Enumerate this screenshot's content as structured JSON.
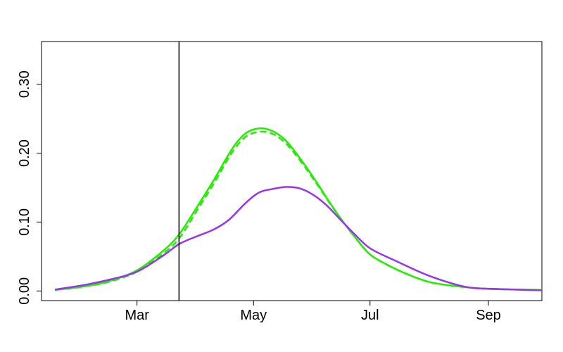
{
  "chart_data": {
    "type": "line",
    "title": "",
    "xlabel": "",
    "ylabel": "",
    "x_ticks": [
      "Mar",
      "May",
      "Jul",
      "Sep"
    ],
    "x_tick_dates": [
      "2020-03-01",
      "2020-05-01",
      "2020-07-01",
      "2020-09-01"
    ],
    "xlim": [
      "2020-01-11",
      "2020-09-29"
    ],
    "y_ticks": [
      "0.00",
      "0.10",
      "0.20",
      "0.30"
    ],
    "y_tick_values": [
      0,
      0.1,
      0.2,
      0.3
    ],
    "ylim": [
      -0.014,
      0.362
    ],
    "grid": false,
    "legend": "none",
    "vertical_line": {
      "x": "2020-03-23",
      "color": "#000000"
    },
    "series": [
      {
        "color": "#22ee00",
        "style": "solid",
        "points": [
          [
            "2020-01-18",
            0.0015
          ],
          [
            "2020-02-01",
            0.006
          ],
          [
            "2020-02-15",
            0.014
          ],
          [
            "2020-03-01",
            0.03
          ],
          [
            "2020-03-15",
            0.059
          ],
          [
            "2020-03-23",
            0.082
          ],
          [
            "2020-04-01",
            0.12
          ],
          [
            "2020-04-10",
            0.16
          ],
          [
            "2020-04-20",
            0.207
          ],
          [
            "2020-04-27",
            0.229
          ],
          [
            "2020-05-04",
            0.236
          ],
          [
            "2020-05-11",
            0.232
          ],
          [
            "2020-05-18",
            0.218
          ],
          [
            "2020-05-26",
            0.19
          ],
          [
            "2020-06-03",
            0.158
          ],
          [
            "2020-06-10",
            0.128
          ],
          [
            "2020-06-17",
            0.1
          ],
          [
            "2020-06-24",
            0.075
          ],
          [
            "2020-07-01",
            0.053
          ],
          [
            "2020-07-10",
            0.038
          ],
          [
            "2020-07-20",
            0.025
          ],
          [
            "2020-08-01",
            0.013
          ],
          [
            "2020-08-15",
            0.007
          ],
          [
            "2020-09-01",
            0.003
          ],
          [
            "2020-09-29",
            0.0015
          ]
        ]
      },
      {
        "color": "#22ee00",
        "style": "dashed",
        "points": [
          [
            "2020-01-18",
            0.0015
          ],
          [
            "2020-02-01",
            0.006
          ],
          [
            "2020-02-15",
            0.013
          ],
          [
            "2020-03-01",
            0.028
          ],
          [
            "2020-03-15",
            0.055
          ],
          [
            "2020-03-23",
            0.076
          ],
          [
            "2020-04-01",
            0.115
          ],
          [
            "2020-04-10",
            0.155
          ],
          [
            "2020-04-20",
            0.202
          ],
          [
            "2020-04-27",
            0.224
          ],
          [
            "2020-05-04",
            0.231
          ],
          [
            "2020-05-11",
            0.228
          ],
          [
            "2020-05-18",
            0.214
          ],
          [
            "2020-05-26",
            0.187
          ],
          [
            "2020-06-03",
            0.156
          ],
          [
            "2020-06-10",
            0.127
          ],
          [
            "2020-06-17",
            0.1
          ],
          [
            "2020-06-24",
            0.075
          ],
          [
            "2020-07-01",
            0.053
          ],
          [
            "2020-07-10",
            0.038
          ],
          [
            "2020-07-20",
            0.025
          ],
          [
            "2020-08-01",
            0.013
          ],
          [
            "2020-08-15",
            0.007
          ],
          [
            "2020-09-01",
            0.003
          ],
          [
            "2020-09-29",
            0.0015
          ]
        ]
      },
      {
        "color": "#9933ee",
        "style": "solid",
        "points": [
          [
            "2020-01-18",
            0.002
          ],
          [
            "2020-02-01",
            0.008
          ],
          [
            "2020-02-15",
            0.016
          ],
          [
            "2020-03-01",
            0.028
          ],
          [
            "2020-03-15",
            0.052
          ],
          [
            "2020-03-23",
            0.068
          ],
          [
            "2020-04-01",
            0.079
          ],
          [
            "2020-04-10",
            0.089
          ],
          [
            "2020-04-18",
            0.103
          ],
          [
            "2020-04-27",
            0.128
          ],
          [
            "2020-05-04",
            0.143
          ],
          [
            "2020-05-11",
            0.148
          ],
          [
            "2020-05-18",
            0.151
          ],
          [
            "2020-05-25",
            0.149
          ],
          [
            "2020-06-01",
            0.14
          ],
          [
            "2020-06-08",
            0.125
          ],
          [
            "2020-06-15",
            0.105
          ],
          [
            "2020-06-22",
            0.085
          ],
          [
            "2020-07-01",
            0.062
          ],
          [
            "2020-07-15",
            0.043
          ],
          [
            "2020-08-01",
            0.022
          ],
          [
            "2020-08-20",
            0.006
          ],
          [
            "2020-09-05",
            0.003
          ],
          [
            "2020-09-29",
            0.001
          ]
        ]
      }
    ]
  }
}
